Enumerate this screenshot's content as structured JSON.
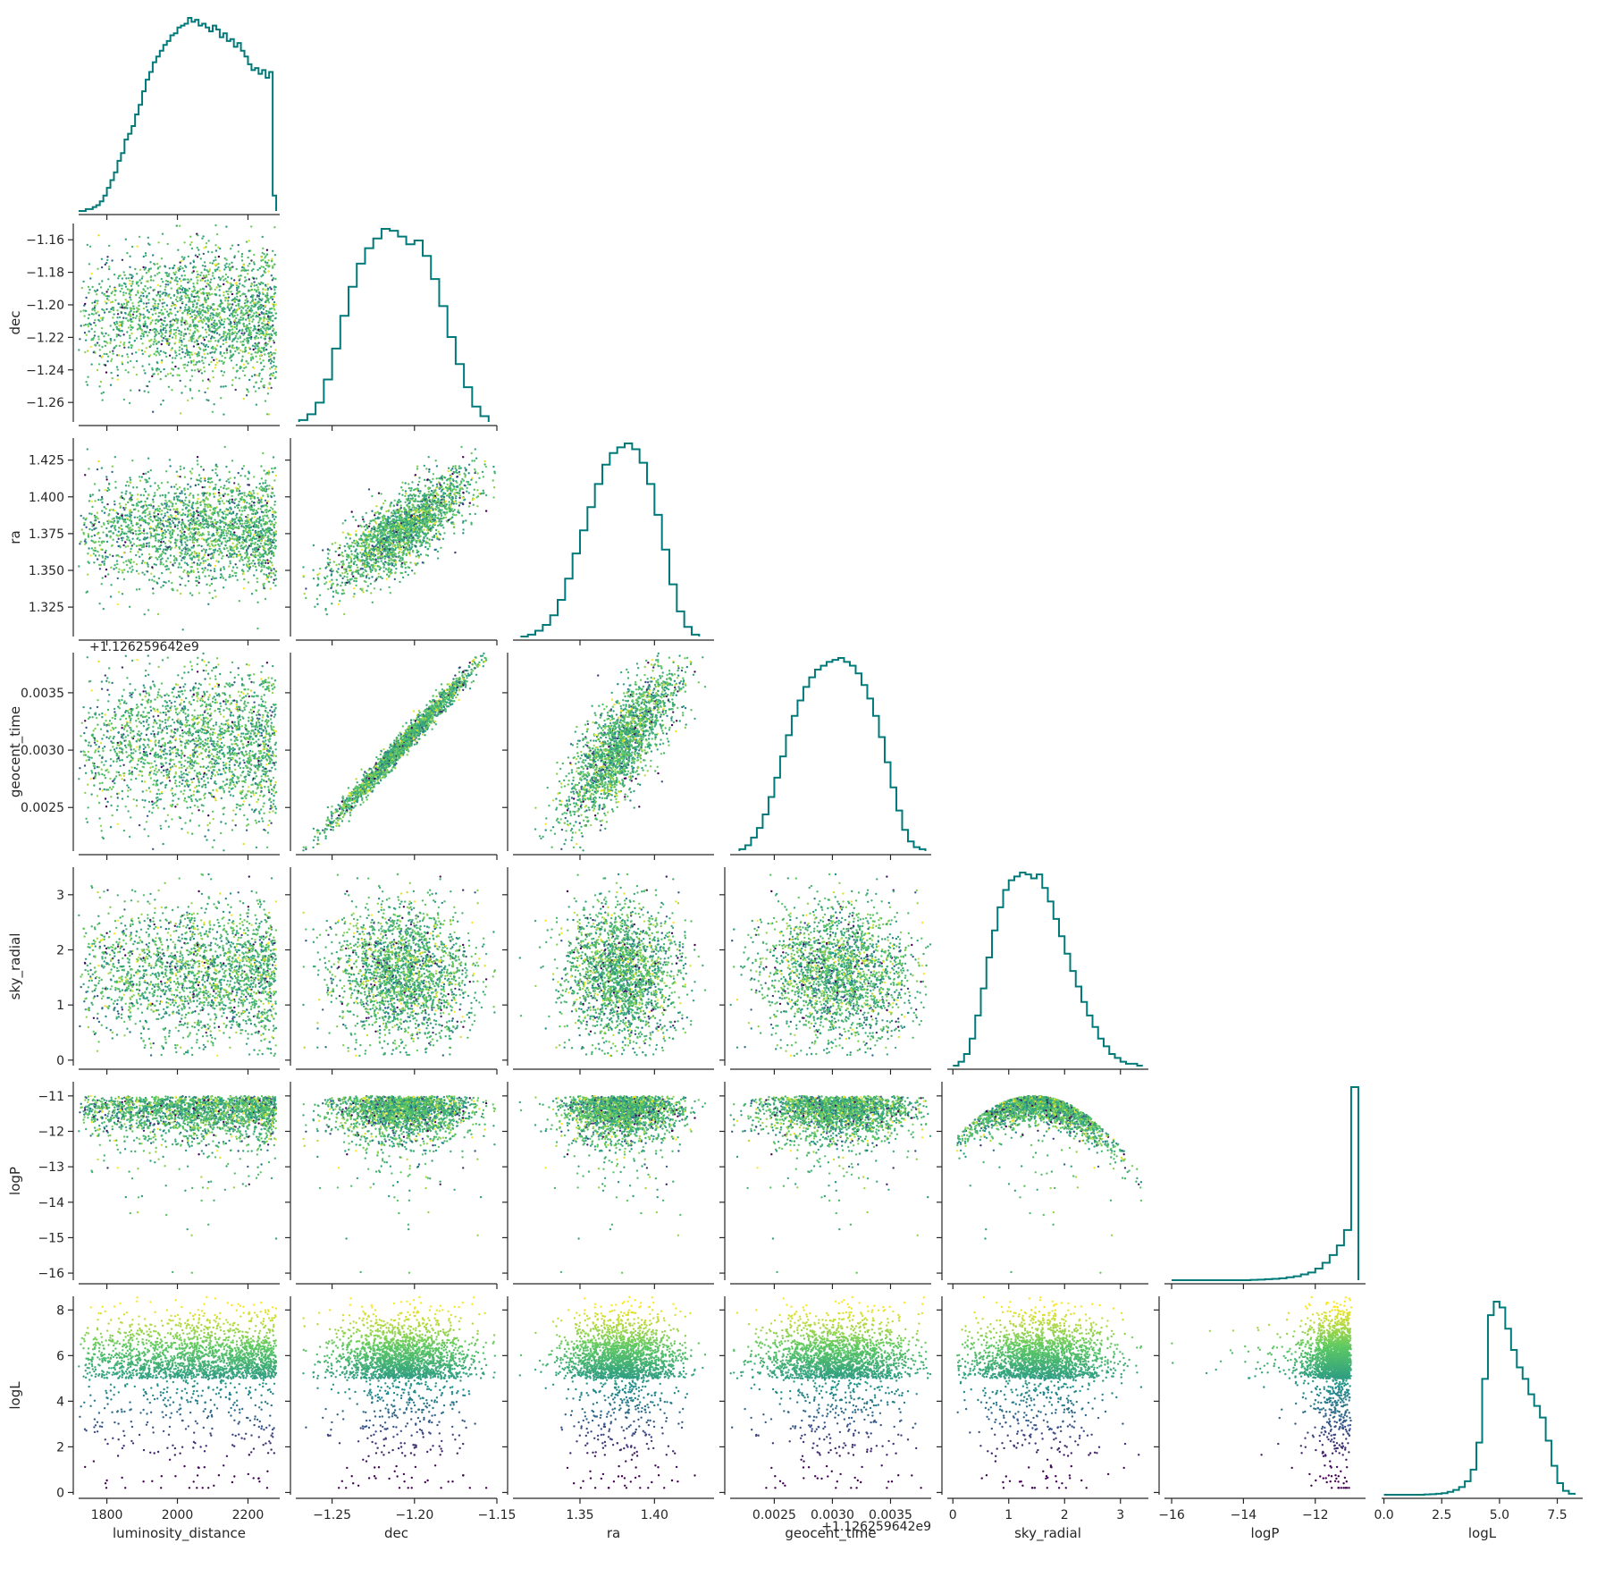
{
  "chart_data": {
    "type": "scatter",
    "kind": "corner-pairplot",
    "title": "",
    "variables": [
      {
        "name": "luminosity_distance",
        "label": "luminosity_distance",
        "range": [
          1720,
          2290
        ],
        "ticks": [
          1800,
          2000,
          2200
        ],
        "tick_labels": [
          "1800",
          "2000",
          "2200"
        ],
        "mean": 2070,
        "std": 130
      },
      {
        "name": "dec",
        "label": "dec",
        "range": [
          -1.272,
          -1.15
        ],
        "ticks": [
          -1.25,
          -1.2,
          -1.15
        ],
        "tick_labels": [
          "−1.25",
          "−1.20",
          "−1.15"
        ],
        "ticks_y": [
          -1.26,
          -1.24,
          -1.22,
          -1.2,
          -1.18,
          -1.16
        ],
        "tick_labels_y": [
          "−1.26",
          "−1.24",
          "−1.22",
          "−1.20",
          "−1.18",
          "−1.16"
        ],
        "mean": -1.207,
        "std": 0.021
      },
      {
        "name": "ra",
        "label": "ra",
        "range": [
          1.305,
          1.44
        ],
        "ticks": [
          1.35,
          1.4
        ],
        "tick_labels": [
          "1.35",
          "1.40"
        ],
        "ticks_y": [
          1.325,
          1.35,
          1.375,
          1.4,
          1.425
        ],
        "tick_labels_y": [
          "1.325",
          "1.350",
          "1.375",
          "1.400",
          "1.425"
        ],
        "mean": 1.378,
        "std": 0.019
      },
      {
        "name": "geocent_time",
        "label": "geocent_time",
        "range": [
          0.00212,
          0.00385
        ],
        "ticks": [
          0.0025,
          0.003,
          0.0035
        ],
        "tick_labels": [
          "0.0025",
          "0.0030",
          "0.0035"
        ],
        "offset_label": "+1.126259642e9",
        "mean": 0.00305,
        "std": 0.00033
      },
      {
        "name": "sky_radial",
        "label": "sky_radial",
        "range": [
          -0.1,
          3.5
        ],
        "ticks": [
          0,
          1,
          2,
          3
        ],
        "tick_labels": [
          "0",
          "1",
          "2",
          "3"
        ],
        "mean": 1.5,
        "std": 0.6
      },
      {
        "name": "logP",
        "label": "logP",
        "range": [
          -16.2,
          -10.6
        ],
        "ticks": [
          -16,
          -14,
          -12
        ],
        "tick_labels": [
          "−16",
          "−14",
          "−12"
        ],
        "ticks_y": [
          -16,
          -15,
          -14,
          -13,
          -12,
          -11
        ],
        "tick_labels_y": [
          "−16",
          "−15",
          "−14",
          "−13",
          "−12",
          "−11"
        ],
        "mean": -11.5,
        "std": 0.6
      },
      {
        "name": "logL",
        "label": "logL",
        "range": [
          -0.1,
          8.6
        ],
        "ticks": [
          0.0,
          2.5,
          5.0,
          7.5
        ],
        "tick_labels": [
          "0.0",
          "2.5",
          "5.0",
          "7.5"
        ],
        "ticks_y": [
          0,
          2,
          4,
          6,
          8
        ],
        "tick_labels_y": [
          "0",
          "2",
          "4",
          "6",
          "8"
        ],
        "mean": 5.5,
        "std": 1.0
      }
    ],
    "histograms": [
      {
        "variable": "luminosity_distance",
        "bins": [
          1720,
          1730,
          1740,
          1750,
          1760,
          1770,
          1780,
          1790,
          1800,
          1810,
          1820,
          1830,
          1840,
          1850,
          1860,
          1870,
          1880,
          1890,
          1900,
          1910,
          1920,
          1930,
          1940,
          1950,
          1960,
          1970,
          1980,
          1990,
          2000,
          2010,
          2020,
          2030,
          2040,
          2050,
          2060,
          2070,
          2080,
          2090,
          2100,
          2110,
          2120,
          2130,
          2140,
          2150,
          2160,
          2170,
          2180,
          2190,
          2200,
          2210,
          2220,
          2230,
          2240,
          2250,
          2260,
          2270,
          2280
        ],
        "counts": [
          0,
          0,
          1,
          1,
          2,
          3,
          5,
          8,
          12,
          16,
          20,
          26,
          30,
          37,
          40,
          44,
          50,
          55,
          62,
          68,
          72,
          77,
          80,
          83,
          86,
          88,
          91,
          92,
          95,
          96,
          97,
          100,
          98,
          99,
          96,
          97,
          95,
          93,
          96,
          94,
          90,
          92,
          88,
          89,
          85,
          87,
          83,
          80,
          76,
          73,
          74,
          71,
          73,
          69,
          72,
          8
        ]
      },
      {
        "variable": "dec",
        "bins": [
          -1.27,
          -1.265,
          -1.26,
          -1.255,
          -1.25,
          -1.245,
          -1.24,
          -1.235,
          -1.23,
          -1.225,
          -1.22,
          -1.215,
          -1.21,
          -1.205,
          -1.2,
          -1.195,
          -1.19,
          -1.185,
          -1.18,
          -1.175,
          -1.17,
          -1.165,
          -1.16,
          -1.155
        ],
        "counts": [
          1,
          4,
          10,
          22,
          38,
          55,
          70,
          82,
          90,
          95,
          100,
          99,
          96,
          92,
          94,
          86,
          74,
          60,
          44,
          30,
          18,
          8,
          3
        ]
      },
      {
        "variable": "ra",
        "bins": [
          1.31,
          1.315,
          1.32,
          1.325,
          1.33,
          1.335,
          1.34,
          1.345,
          1.35,
          1.355,
          1.36,
          1.365,
          1.37,
          1.375,
          1.38,
          1.385,
          1.39,
          1.395,
          1.4,
          1.405,
          1.41,
          1.415,
          1.42,
          1.425,
          1.43
        ],
        "counts": [
          0,
          1,
          3,
          6,
          11,
          19,
          30,
          43,
          55,
          67,
          79,
          89,
          95,
          98,
          100,
          97,
          90,
          79,
          63,
          45,
          27,
          13,
          5,
          1
        ]
      },
      {
        "variable": "geocent_time",
        "bins": [
          0.0022,
          0.00225,
          0.0023,
          0.00235,
          0.0024,
          0.00245,
          0.0025,
          0.00255,
          0.0026,
          0.00265,
          0.0027,
          0.00275,
          0.0028,
          0.00285,
          0.0029,
          0.00295,
          0.003,
          0.00305,
          0.0031,
          0.00315,
          0.0032,
          0.00325,
          0.0033,
          0.00335,
          0.0034,
          0.00345,
          0.0035,
          0.00355,
          0.0036,
          0.00365,
          0.0037,
          0.00375,
          0.0038
        ],
        "counts": [
          1,
          3,
          7,
          12,
          19,
          28,
          38,
          49,
          60,
          70,
          78,
          85,
          90,
          94,
          96,
          98,
          99,
          100,
          98,
          96,
          92,
          86,
          79,
          70,
          59,
          46,
          33,
          21,
          11,
          5,
          2,
          1
        ]
      },
      {
        "variable": "sky_radial",
        "bins": [
          0.0,
          0.1,
          0.2,
          0.3,
          0.4,
          0.5,
          0.6,
          0.7,
          0.8,
          0.9,
          1.0,
          1.1,
          1.2,
          1.3,
          1.4,
          1.5,
          1.6,
          1.7,
          1.8,
          1.9,
          2.0,
          2.1,
          2.2,
          2.3,
          2.4,
          2.5,
          2.6,
          2.7,
          2.8,
          2.9,
          3.0,
          3.1,
          3.2,
          3.3,
          3.4
        ],
        "counts": [
          0,
          2,
          6,
          14,
          26,
          40,
          56,
          70,
          82,
          91,
          96,
          98,
          100,
          99,
          97,
          99,
          92,
          85,
          76,
          67,
          58,
          49,
          41,
          33,
          26,
          20,
          14,
          10,
          6,
          4,
          2,
          1,
          1,
          0
        ]
      },
      {
        "variable": "logP",
        "bins": [
          -16.0,
          -15.8,
          -15.6,
          -15.4,
          -15.2,
          -15.0,
          -14.8,
          -14.6,
          -14.4,
          -14.2,
          -14.0,
          -13.8,
          -13.6,
          -13.4,
          -13.2,
          -13.0,
          -12.8,
          -12.6,
          -12.4,
          -12.2,
          -12.0,
          -11.8,
          -11.6,
          -11.4,
          -11.2,
          -11.0,
          -10.8
        ],
        "counts": [
          0,
          0,
          0,
          0,
          0,
          0,
          0,
          0,
          0,
          0,
          0,
          0.2,
          0.3,
          0.5,
          0.7,
          1,
          1.5,
          2,
          3,
          4,
          6,
          9,
          13,
          18,
          26,
          100
        ]
      },
      {
        "variable": "logL",
        "bins": [
          0.0,
          0.25,
          0.5,
          0.75,
          1.0,
          1.25,
          1.5,
          1.75,
          2.0,
          2.25,
          2.5,
          2.75,
          3.0,
          3.25,
          3.5,
          3.75,
          4.0,
          4.25,
          4.5,
          4.75,
          5.0,
          5.25,
          5.5,
          5.75,
          6.0,
          6.25,
          6.5,
          6.75,
          7.0,
          7.25,
          7.5,
          7.75,
          8.0,
          8.25
        ],
        "counts": [
          0,
          0,
          0,
          0,
          0,
          0,
          0,
          0.2,
          0.3,
          0.5,
          0.8,
          1.5,
          2.5,
          4,
          7,
          13,
          27,
          60,
          93,
          100,
          97,
          86,
          75,
          66,
          60,
          52,
          46,
          40,
          28,
          15,
          6,
          2,
          0.5
        ]
      }
    ],
    "scatter_color_map": "viridis",
    "scatter_color_variable": "logL",
    "hist_color": "#007a78",
    "grid": false,
    "legend": "none",
    "notes_visible": ""
  }
}
